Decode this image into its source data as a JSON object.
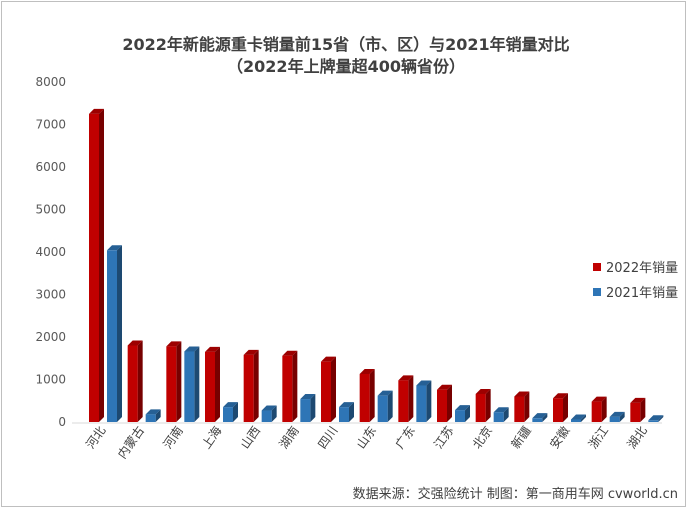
{
  "chart_data": {
    "type": "bar",
    "title": "2022年新能源重卡销量前15省（市、区）与2021年销量对比",
    "subtitle": "（2022年上牌量超400辆省份）",
    "xlabel": "",
    "ylabel": "",
    "ylim": [
      0,
      8000
    ],
    "yticks": [
      0,
      1000,
      2000,
      3000,
      4000,
      5000,
      6000,
      7000,
      8000
    ],
    "categories": [
      "河北",
      "内蒙古",
      "河南",
      "上海",
      "山西",
      "湖南",
      "四川",
      "山东",
      "广东",
      "江苏",
      "北京",
      "新疆",
      "安徽",
      "浙江",
      "湖北"
    ],
    "series": [
      {
        "name": "2022年销量",
        "color": "#c00000",
        "values": [
          7250,
          1800,
          1780,
          1650,
          1580,
          1560,
          1420,
          1130,
          980,
          760,
          660,
          600,
          560,
          480,
          450
        ]
      },
      {
        "name": "2021年销量",
        "color": "#2e75b6",
        "values": [
          4040,
          180,
          1660,
          350,
          270,
          540,
          350,
          620,
          860,
          280,
          230,
          90,
          60,
          120,
          40
        ]
      }
    ],
    "legend": "right",
    "grid": false
  },
  "source": "数据来源：交强险统计  制图：第一商用车网 cvworld.cn"
}
